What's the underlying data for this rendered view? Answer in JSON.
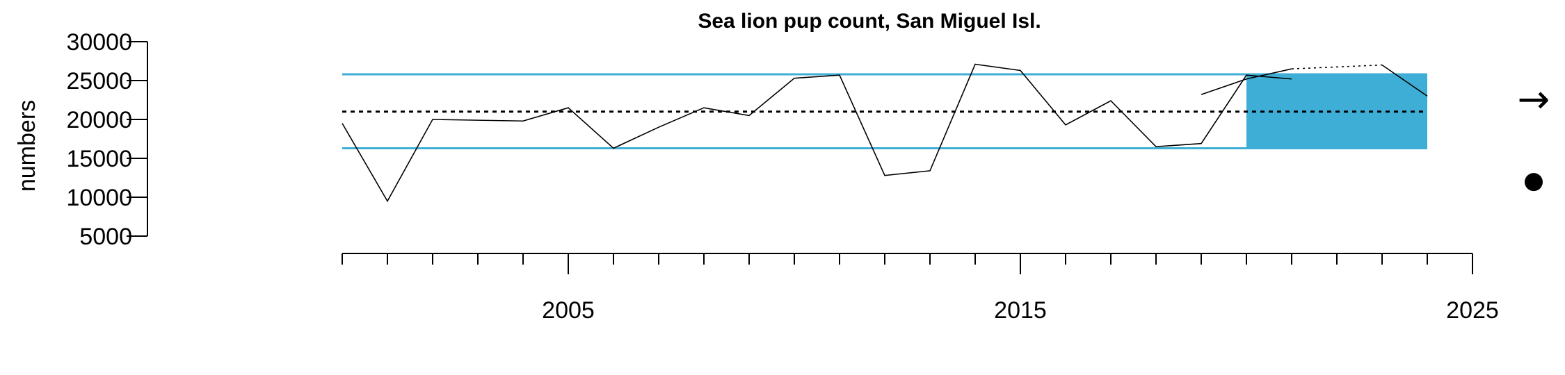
{
  "chart_data": {
    "type": "line",
    "title": "Sea lion pup count, San Miguel Isl.",
    "ylabel": "numbers",
    "xlabel": "",
    "xlim": [
      1999.7,
      2025
    ],
    "ylim": [
      5000,
      30000
    ],
    "y_ticks": [
      5000,
      10000,
      15000,
      20000,
      25000,
      30000
    ],
    "x_ticks_major": [
      2005,
      2015,
      2025
    ],
    "x_ticks_minor_range": [
      2000,
      2025
    ],
    "mean": 21000,
    "upper_sd": 25800,
    "lower_sd": 16300,
    "highlight_range": [
      2020,
      2024
    ],
    "colors": {
      "band": "#3eaed6",
      "line": "#000000",
      "mean": "#000000"
    },
    "series": [
      {
        "style": "solid",
        "x": [
          2000,
          2001,
          2002,
          2003,
          2004,
          2005,
          2006,
          2007,
          2008,
          2009,
          2010,
          2011,
          2012,
          2013,
          2014,
          2015,
          2016,
          2017,
          2018,
          2019,
          2020,
          2021
        ],
        "y": [
          19500,
          9500,
          20000,
          19900,
          19800,
          21500,
          16300,
          19000,
          21500,
          20500,
          25300,
          25700,
          12800,
          13400,
          27100,
          26300,
          19300,
          22400,
          16500,
          16900,
          25700,
          25200
        ]
      },
      {
        "style": "solid",
        "x": [
          2019,
          2020,
          2021
        ],
        "y": [
          23200,
          25200,
          26500
        ]
      },
      {
        "style": "dotted",
        "x": [
          2021,
          2023
        ],
        "y": [
          26500,
          27000
        ]
      },
      {
        "style": "solid",
        "x": [
          2023,
          2024
        ],
        "y": [
          27000,
          23000
        ]
      }
    ],
    "trend_symbols": {
      "arrow": "→",
      "dot": "●"
    }
  }
}
